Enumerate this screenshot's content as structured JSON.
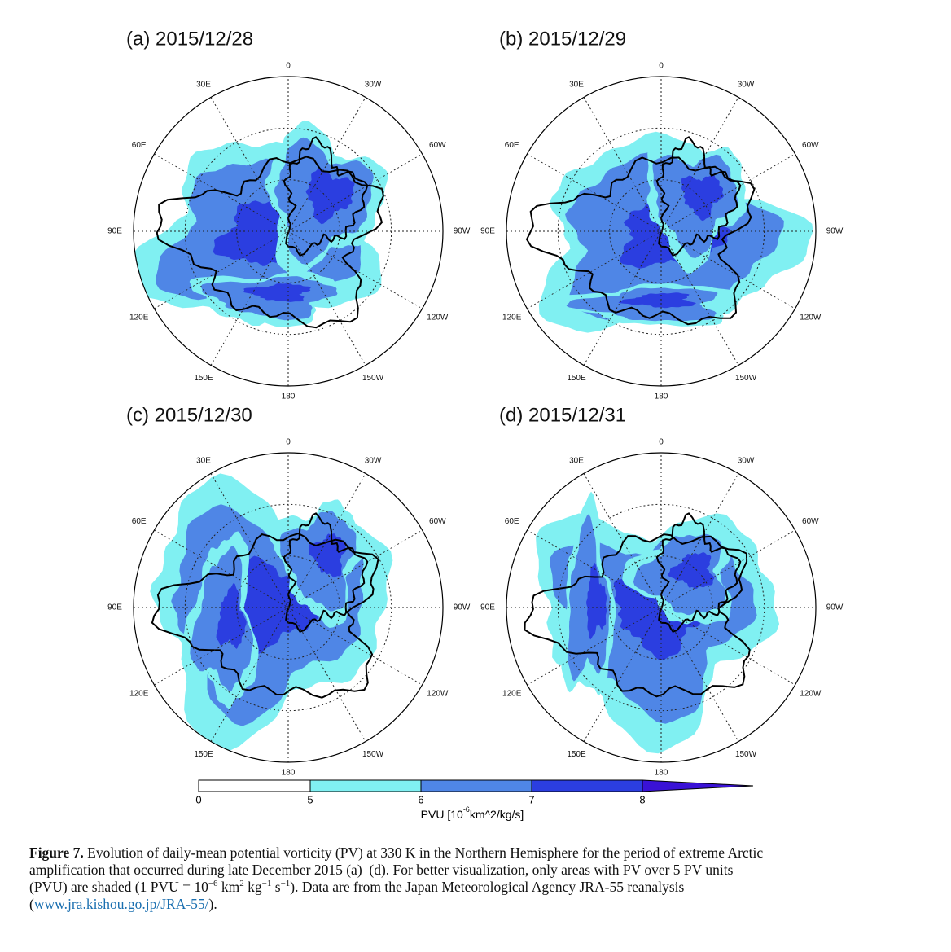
{
  "panels": [
    {
      "title": "(a) 2015/12/28"
    },
    {
      "title": "(b) 2015/12/29"
    },
    {
      "title": "(c) 2015/12/30"
    },
    {
      "title": "(d) 2015/12/31"
    }
  ],
  "longitude_labels": [
    "0",
    "30W",
    "60W",
    "90W",
    "120W",
    "150W",
    "180",
    "150E",
    "120E",
    "90E",
    "60E",
    "30E"
  ],
  "colorbar": {
    "ticks": [
      0,
      5,
      6,
      7,
      8
    ],
    "label": {
      "main": "PVU [10",
      "sup": "-6",
      "unit": "km^2/kg/s]"
    }
  },
  "caption": {
    "label": "Figure 7.",
    "lines": [
      [
        " Evolution of daily-mean potential vorticity (PV) at 330 K in the Northern Hemisphere for the period of extreme Arctic"
      ],
      [
        "amplification that occurred during late December 2015 (a)–(d). For better visualization, only areas with PV over 5 PV units"
      ],
      [
        "(PVU) are shaded (1 PVU = 10",
        "−6",
        " km",
        "2",
        " kg",
        "−1",
        " s",
        "−1",
        "). Data are from the Japan Meteorological Agency JRA-55 reanalysis"
      ],
      [
        "(",
        "www.jra.kishou.go.jp/JRA-55/",
        ")."
      ]
    ]
  }
}
